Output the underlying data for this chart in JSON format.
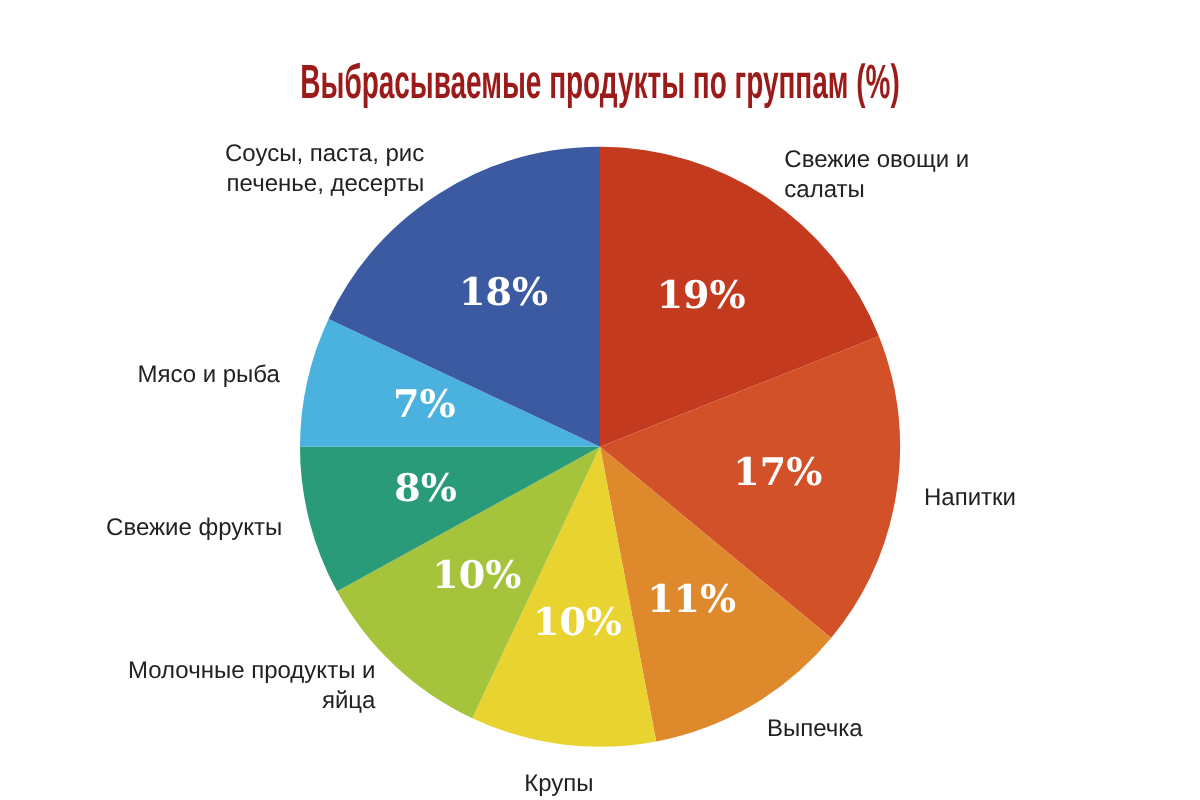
{
  "chart_data": {
    "type": "pie",
    "title": "Выбрасываемые продукты по группам (%)",
    "categories": [
      "Свежие овощи и салаты",
      "Напитки",
      "Выпечка",
      "Крупы",
      "Молочные продукты и яйца",
      "Свежие фрукты",
      "Мясо и рыба",
      "Соусы, паста, рис печенье, десерты"
    ],
    "values": [
      19,
      17,
      11,
      10,
      10,
      8,
      7,
      18
    ],
    "colors": [
      "#c33a1f",
      "#d25128",
      "#de8a2c",
      "#e9d330",
      "#a6c33c",
      "#2a9b78",
      "#4bb2df",
      "#3b5aa1"
    ],
    "value_labels": [
      "19%",
      "17%",
      "11%",
      "10%",
      "10%",
      "8%",
      "7%",
      "18%"
    ],
    "legend": false
  }
}
